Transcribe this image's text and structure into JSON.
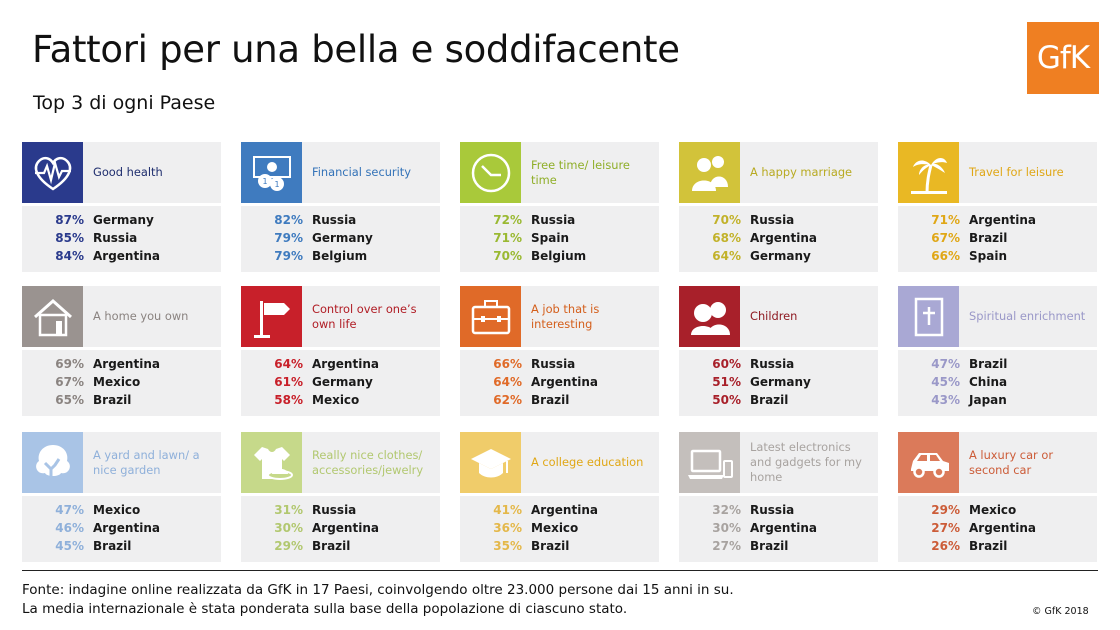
{
  "title": "Fattori per una bella e soddifacente",
  "subtitle": "Top 3 di ogni Paese",
  "logo": "GfK",
  "chart_data": {
    "type": "table",
    "columns": [
      "category",
      "rank",
      "percent",
      "country"
    ],
    "categories": [
      {
        "label": "Good health",
        "icon": "heartbeat-icon",
        "color": "#2a3a8c",
        "labelColor": "#1f2e6e",
        "pctColor": "#2a3a8c",
        "top3": [
          {
            "pct": "87%",
            "country": "Germany"
          },
          {
            "pct": "85%",
            "country": "Russia"
          },
          {
            "pct": "84%",
            "country": "Argentina"
          }
        ]
      },
      {
        "label": "Financial security",
        "icon": "money-icon",
        "color": "#3f7bbf",
        "labelColor": "#3473b8",
        "pctColor": "#3f7bbf",
        "top3": [
          {
            "pct": "82%",
            "country": "Russia"
          },
          {
            "pct": "79%",
            "country": "Germany"
          },
          {
            "pct": "79%",
            "country": "Belgium"
          }
        ]
      },
      {
        "label": "Free time/ leisure time",
        "icon": "clock-icon",
        "color": "#a9c93a",
        "labelColor": "#8fae28",
        "pctColor": "#9ab932",
        "top3": [
          {
            "pct": "72%",
            "country": "Russia"
          },
          {
            "pct": "71%",
            "country": "Spain"
          },
          {
            "pct": "70%",
            "country": "Belgium"
          }
        ]
      },
      {
        "label": "A happy marriage",
        "icon": "couple-icon",
        "color": "#d2c33a",
        "labelColor": "#b8aa22",
        "pctColor": "#c2b22a",
        "top3": [
          {
            "pct": "70%",
            "country": "Russia"
          },
          {
            "pct": "68%",
            "country": "Argentina"
          },
          {
            "pct": "64%",
            "country": "Germany"
          }
        ]
      },
      {
        "label": "Travel for leisure",
        "icon": "palm-tree-icon",
        "color": "#e9b824",
        "labelColor": "#e0a716",
        "pctColor": "#e0a716",
        "top3": [
          {
            "pct": "71%",
            "country": "Argentina"
          },
          {
            "pct": "67%",
            "country": "Brazil"
          },
          {
            "pct": "66%",
            "country": "Spain"
          }
        ]
      },
      {
        "label": "A home you own",
        "icon": "house-icon",
        "color": "#9a9390",
        "labelColor": "#8a8380",
        "pctColor": "#8a8380",
        "top3": [
          {
            "pct": "69%",
            "country": "Argentina"
          },
          {
            "pct": "67%",
            "country": "Mexico"
          },
          {
            "pct": "65%",
            "country": "Brazil"
          }
        ]
      },
      {
        "label": "Control over one’s own life",
        "icon": "signpost-icon",
        "color": "#c8202a",
        "labelColor": "#b01c24",
        "pctColor": "#c8202a",
        "top3": [
          {
            "pct": "64%",
            "country": "Argentina"
          },
          {
            "pct": "61%",
            "country": "Germany"
          },
          {
            "pct": "58%",
            "country": "Mexico"
          }
        ]
      },
      {
        "label": "A job that is interesting",
        "icon": "briefcase-icon",
        "color": "#e06a28",
        "labelColor": "#d45f1c",
        "pctColor": "#e06a28",
        "top3": [
          {
            "pct": "66%",
            "country": "Russia"
          },
          {
            "pct": "64%",
            "country": "Argentina"
          },
          {
            "pct": "62%",
            "country": "Brazil"
          }
        ]
      },
      {
        "label": "Children",
        "icon": "children-icon",
        "color": "#a8202a",
        "labelColor": "#8e1a22",
        "pctColor": "#a8202a",
        "top3": [
          {
            "pct": "60%",
            "country": "Russia"
          },
          {
            "pct": "51%",
            "country": "Germany"
          },
          {
            "pct": "50%",
            "country": "Brazil"
          }
        ]
      },
      {
        "label": "Spiritual enrichment",
        "icon": "bible-icon",
        "color": "#a9a8d4",
        "labelColor": "#9a98c8",
        "pctColor": "#9a98c8",
        "top3": [
          {
            "pct": "47%",
            "country": "Brazil"
          },
          {
            "pct": "45%",
            "country": "China"
          },
          {
            "pct": "43%",
            "country": "Japan"
          }
        ]
      },
      {
        "label": "A yard and lawn/ a nice garden",
        "icon": "tree-icon",
        "color": "#a9c4e6",
        "labelColor": "#8fb0da",
        "pctColor": "#8fb0da",
        "top3": [
          {
            "pct": "47%",
            "country": "Mexico"
          },
          {
            "pct": "46%",
            "country": "Argentina"
          },
          {
            "pct": "45%",
            "country": "Brazil"
          }
        ]
      },
      {
        "label": "Really nice clothes/ accessories/jewelry",
        "icon": "shirt-hat-icon",
        "color": "#c6d98a",
        "labelColor": "#b2c870",
        "pctColor": "#b2c870",
        "top3": [
          {
            "pct": "31%",
            "country": "Russia"
          },
          {
            "pct": "30%",
            "country": "Argentina"
          },
          {
            "pct": "29%",
            "country": "Brazil"
          }
        ]
      },
      {
        "label": "A college education",
        "icon": "graduation-cap-icon",
        "color": "#f0cc6a",
        "labelColor": "#e0a716",
        "pctColor": "#e4b84a",
        "top3": [
          {
            "pct": "41%",
            "country": "Argentina"
          },
          {
            "pct": "36%",
            "country": "Mexico"
          },
          {
            "pct": "35%",
            "country": "Brazil"
          }
        ]
      },
      {
        "label": "Latest electronics and gadgets for my home",
        "icon": "laptop-icon",
        "color": "#c4bfbc",
        "labelColor": "#a8a3a0",
        "pctColor": "#a8a3a0",
        "top3": [
          {
            "pct": "32%",
            "country": "Russia"
          },
          {
            "pct": "30%",
            "country": "Argentina"
          },
          {
            "pct": "27%",
            "country": "Brazil"
          }
        ]
      },
      {
        "label": "A luxury car or second car",
        "icon": "car-icon",
        "color": "#db7a5a",
        "labelColor": "#cc5c38",
        "pctColor": "#cc5c38",
        "top3": [
          {
            "pct": "29%",
            "country": "Mexico"
          },
          {
            "pct": "27%",
            "country": "Argentina"
          },
          {
            "pct": "26%",
            "country": "Brazil"
          }
        ]
      }
    ]
  },
  "footer": {
    "line1": "Fonte: indagine online realizzata da GfK in 17 Paesi, coinvolgendo oltre 23.000 persone dai 15 anni in su.",
    "line2": "La media internazionale è stata ponderata sulla base della popolazione di ciascuno stato.",
    "copyright": "© GfK 2018"
  }
}
